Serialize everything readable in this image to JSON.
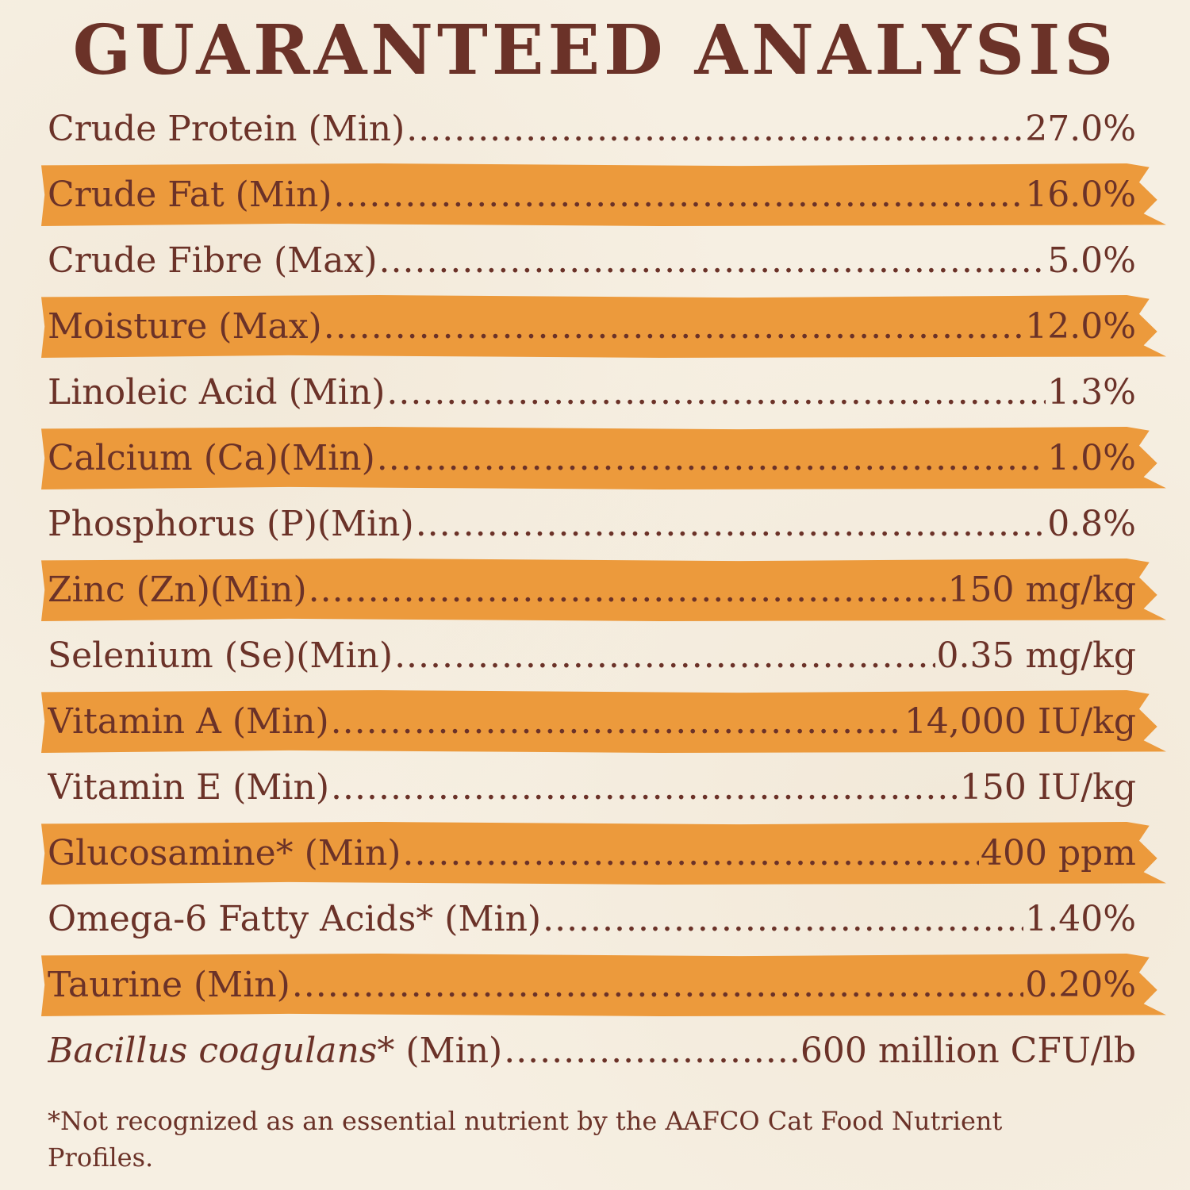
{
  "title": "GUARANTEED ANALYSIS",
  "rows": [
    {
      "label": "Crude Protein (Min)",
      "value": "27.0%",
      "highlight": false
    },
    {
      "label": "Crude Fat (Min)",
      "value": "16.0%",
      "highlight": true
    },
    {
      "label": "Crude Fibre (Max)",
      "value": "5.0%",
      "highlight": false
    },
    {
      "label": "Moisture (Max)",
      "value": "12.0%",
      "highlight": true
    },
    {
      "label": "Linoleic Acid (Min)",
      "value": "1.3%",
      "highlight": false
    },
    {
      "label": "Calcium (Ca)(Min)",
      "value": "1.0%",
      "highlight": true
    },
    {
      "label": "Phosphorus (P)(Min)",
      "value": "0.8%",
      "highlight": false
    },
    {
      "label": "Zinc (Zn)(Min)",
      "value": "150 mg/kg",
      "highlight": true
    },
    {
      "label": "Selenium (Se)(Min)",
      "value": "0.35 mg/kg",
      "highlight": false
    },
    {
      "label": "Vitamin A (Min)",
      "value": "14,000 IU/kg",
      "highlight": true
    },
    {
      "label": "Vitamin E (Min)",
      "value": "150 IU/kg",
      "highlight": false
    },
    {
      "label": "Glucosamine* (Min)",
      "value": "400 ppm",
      "highlight": true
    },
    {
      "label": "Omega-6 Fatty Acids* (Min)",
      "value": "1.40%",
      "highlight": false
    },
    {
      "label": "Taurine (Min)",
      "value": "0.20%",
      "highlight": true
    },
    {
      "label_italic": "Bacillus coagulans*",
      "label": " (Min)",
      "value": "600 million CFU/lb",
      "highlight": false
    }
  ],
  "footnote": "*Not recognized as an essential nutrient by the AAFCO Cat Food Nutrient Profiles.",
  "colors": {
    "background": "#f6efe2",
    "text": "#6b3228",
    "highlight": "#ec9a3c"
  }
}
